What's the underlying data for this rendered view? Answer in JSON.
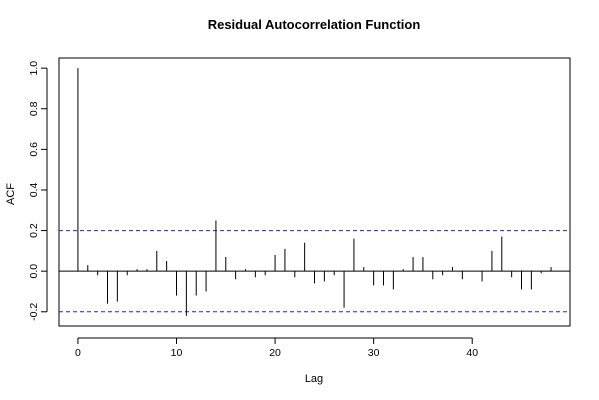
{
  "chart_data": {
    "type": "bar",
    "title": "Residual Autocorrelation Function",
    "xlabel": "Lag",
    "ylabel": "ACF",
    "xlim": [
      -1.92,
      49.92
    ],
    "ylim": [
      -0.27,
      1.05
    ],
    "xticks": [
      0,
      10,
      20,
      30,
      40
    ],
    "yticks": [
      -0.2,
      0.0,
      0.2,
      0.4,
      0.6,
      0.8,
      1.0
    ],
    "confidence_bound": 0.2,
    "colors": {
      "bars": "#000000",
      "bounds": "#2222dd",
      "zero_line": "#000000"
    },
    "x": [
      0,
      1,
      2,
      3,
      4,
      5,
      6,
      7,
      8,
      9,
      10,
      11,
      12,
      13,
      14,
      15,
      16,
      17,
      18,
      19,
      20,
      21,
      22,
      23,
      24,
      25,
      26,
      27,
      28,
      29,
      30,
      31,
      32,
      33,
      34,
      35,
      36,
      37,
      38,
      39,
      40,
      41,
      42,
      43,
      44,
      45,
      46,
      47,
      48
    ],
    "values": [
      1.0,
      0.03,
      -0.02,
      -0.16,
      -0.15,
      -0.02,
      0.01,
      0.01,
      0.1,
      0.05,
      -0.12,
      -0.22,
      -0.12,
      -0.1,
      0.25,
      0.07,
      -0.04,
      0.01,
      -0.03,
      -0.02,
      0.08,
      0.11,
      -0.03,
      0.14,
      -0.06,
      -0.05,
      -0.02,
      -0.18,
      0.16,
      0.02,
      -0.07,
      -0.07,
      -0.09,
      0.01,
      0.07,
      0.07,
      -0.04,
      -0.02,
      0.02,
      -0.04,
      0.0,
      -0.05,
      0.1,
      0.17,
      -0.03,
      -0.09,
      -0.09,
      -0.01,
      0.02
    ]
  }
}
